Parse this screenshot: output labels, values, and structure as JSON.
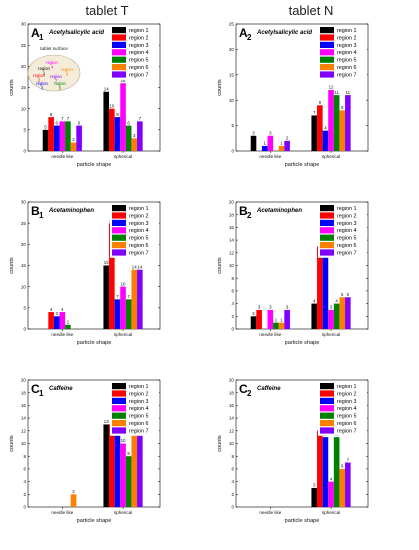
{
  "column_titles": [
    "tablet T",
    "tablet N"
  ],
  "colors": [
    "#000000",
    "#ff0000",
    "#0000ff",
    "#ff00ff",
    "#008000",
    "#ff8000",
    "#8000ff"
  ],
  "legend_labels": [
    "region 1",
    "region 2",
    "region 3",
    "region 4",
    "region 5",
    "region 6",
    "region 7"
  ],
  "inset": {
    "title": "tablet surface",
    "regions": [
      "region 1",
      "region 2",
      "region 3",
      "region 4",
      "region 5",
      "region 6",
      "region 7"
    ]
  },
  "chart_data": [
    {
      "type": "bar",
      "panel": "A",
      "sub": "1",
      "title": "Acetylsalicylic acid",
      "categories": [
        "needle like",
        "spherical"
      ],
      "xlabel": "particle shape",
      "ylabel": "counts",
      "ylim": [
        0,
        30
      ],
      "yticks": [
        "0",
        "5",
        "10",
        "15",
        "20",
        "25",
        "30"
      ],
      "ytick_values": [
        0,
        5,
        10,
        15,
        20,
        25,
        30
      ],
      "series": [
        {
          "name": "region 1",
          "values": [
            5,
            14
          ]
        },
        {
          "name": "region 2",
          "values": [
            8,
            10
          ]
        },
        {
          "name": "region 3",
          "values": [
            6,
            8
          ]
        },
        {
          "name": "region 4",
          "values": [
            7,
            16
          ]
        },
        {
          "name": "region 5",
          "values": [
            7,
            6
          ]
        },
        {
          "name": "region 6",
          "values": [
            2,
            3
          ]
        },
        {
          "name": "region 7",
          "values": [
            6,
            7
          ]
        }
      ],
      "has_inset": true
    },
    {
      "type": "bar",
      "panel": "A",
      "sub": "2",
      "title": "Acetylsalicylic acid",
      "categories": [
        "needle like",
        "spherical"
      ],
      "xlabel": "particle shape",
      "ylabel": "counts",
      "ylim": [
        0,
        25
      ],
      "yticks": [
        "0",
        "5",
        "10",
        "15",
        "20",
        "25"
      ],
      "ytick_values": [
        0,
        5,
        10,
        15,
        20,
        25
      ],
      "series": [
        {
          "name": "region 1",
          "values": [
            3,
            7
          ]
        },
        {
          "name": "region 2",
          "values": [
            0,
            9
          ]
        },
        {
          "name": "region 3",
          "values": [
            1,
            4
          ]
        },
        {
          "name": "region 4",
          "values": [
            3,
            12
          ]
        },
        {
          "name": "region 5",
          "values": [
            0,
            11
          ]
        },
        {
          "name": "region 6",
          "values": [
            1,
            8
          ]
        },
        {
          "name": "region 7",
          "values": [
            2,
            11
          ]
        }
      ],
      "has_inset": false
    },
    {
      "type": "bar",
      "panel": "B",
      "sub": "1",
      "title": "Acetaminophen",
      "categories": [
        "needle like",
        "spherical"
      ],
      "xlabel": "particle shape",
      "ylabel": "counts",
      "ylim": [
        0,
        30
      ],
      "yticks": [
        "0",
        "5",
        "10",
        "15",
        "20",
        "25",
        "30"
      ],
      "ytick_values": [
        0,
        5,
        10,
        15,
        20,
        25,
        30
      ],
      "series": [
        {
          "name": "region 1",
          "values": [
            0,
            15
          ]
        },
        {
          "name": "region 2",
          "values": [
            4,
            25
          ]
        },
        {
          "name": "region 3",
          "values": [
            3,
            7
          ]
        },
        {
          "name": "region 4",
          "values": [
            4,
            10
          ]
        },
        {
          "name": "region 5",
          "values": [
            1,
            7
          ]
        },
        {
          "name": "region 6",
          "values": [
            0,
            14
          ]
        },
        {
          "name": "region 7",
          "values": [
            0,
            14
          ]
        }
      ],
      "has_inset": false
    },
    {
      "type": "bar",
      "panel": "B",
      "sub": "2",
      "title": "Acetaminophen",
      "categories": [
        "needle like",
        "spherical"
      ],
      "xlabel": "particle shape",
      "ylabel": "counts",
      "ylim": [
        0,
        20
      ],
      "yticks": [
        "0",
        "2",
        "4",
        "6",
        "8",
        "10",
        "12",
        "14",
        "16",
        "18",
        "20"
      ],
      "ytick_values": [
        0,
        2,
        4,
        6,
        8,
        10,
        12,
        14,
        16,
        18,
        20
      ],
      "series": [
        {
          "name": "region 1",
          "values": [
            2,
            4
          ]
        },
        {
          "name": "region 2",
          "values": [
            3,
            13
          ]
        },
        {
          "name": "region 3",
          "values": [
            0,
            12
          ]
        },
        {
          "name": "region 4",
          "values": [
            3,
            3
          ]
        },
        {
          "name": "region 5",
          "values": [
            1,
            4
          ]
        },
        {
          "name": "region 6",
          "values": [
            1,
            5
          ]
        },
        {
          "name": "region 7",
          "values": [
            3,
            5
          ]
        }
      ],
      "has_inset": false
    },
    {
      "type": "bar",
      "panel": "C",
      "sub": "1",
      "title": "Caffeine",
      "categories": [
        "needle like",
        "spherical"
      ],
      "xlabel": "particle shape",
      "ylabel": "counts",
      "ylim": [
        0,
        20
      ],
      "yticks": [
        "0",
        "2",
        "4",
        "6",
        "8",
        "10",
        "12",
        "14",
        "16",
        "18",
        "20"
      ],
      "ytick_values": [
        0,
        2,
        4,
        6,
        8,
        10,
        12,
        14,
        16,
        18,
        20
      ],
      "series": [
        {
          "name": "region 1",
          "values": [
            0,
            13
          ]
        },
        {
          "name": "region 2",
          "values": [
            0,
            13
          ]
        },
        {
          "name": "region 3",
          "values": [
            0,
            14
          ]
        },
        {
          "name": "region 4",
          "values": [
            0,
            10
          ]
        },
        {
          "name": "region 5",
          "values": [
            0,
            8
          ]
        },
        {
          "name": "region 6",
          "values": [
            2,
            13
          ]
        },
        {
          "name": "region 7",
          "values": [
            0,
            13
          ]
        }
      ],
      "has_inset": false
    },
    {
      "type": "bar",
      "panel": "C",
      "sub": "2",
      "title": "Caffeine",
      "categories": [
        "needle like",
        "spherical"
      ],
      "xlabel": "particle shape",
      "ylabel": "counts",
      "ylim": [
        0,
        20
      ],
      "yticks": [
        "0",
        "2",
        "4",
        "6",
        "8",
        "10",
        "12",
        "14",
        "16",
        "18",
        "20"
      ],
      "ytick_values": [
        0,
        2,
        4,
        6,
        8,
        10,
        12,
        14,
        16,
        18,
        20
      ],
      "series": [
        {
          "name": "region 1",
          "values": [
            0,
            3
          ]
        },
        {
          "name": "region 2",
          "values": [
            0,
            12
          ]
        },
        {
          "name": "region 3",
          "values": [
            0,
            11
          ]
        },
        {
          "name": "region 4",
          "values": [
            0,
            4
          ]
        },
        {
          "name": "region 5",
          "values": [
            0,
            11
          ]
        },
        {
          "name": "region 6",
          "values": [
            0,
            6
          ]
        },
        {
          "name": "region 7",
          "values": [
            0,
            7
          ]
        }
      ],
      "has_inset": false
    }
  ]
}
